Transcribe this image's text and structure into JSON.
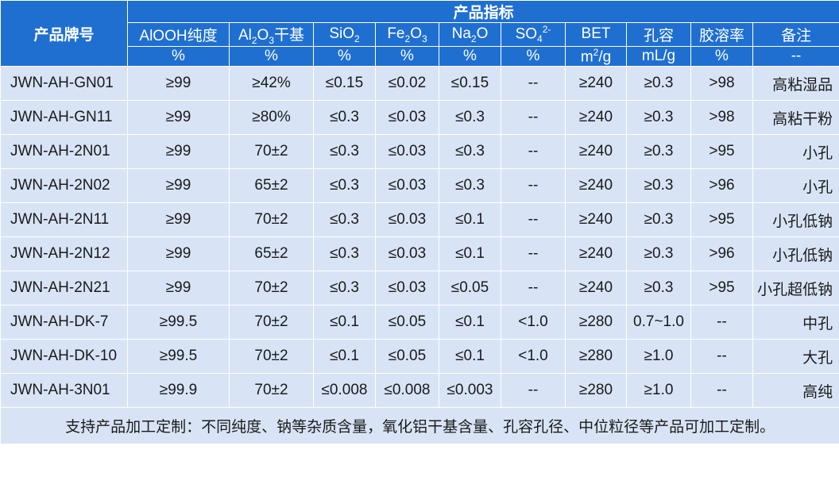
{
  "header": {
    "product_model": "产品牌号",
    "group_title": "产品指标",
    "columns": [
      {
        "key": "alooh",
        "label": "AlOOH纯度",
        "unit": "%"
      },
      {
        "key": "al2o3",
        "label_parts": [
          "Al",
          "2",
          "O",
          "3",
          "干基"
        ],
        "unit": "%"
      },
      {
        "key": "sio2",
        "label_parts": [
          "SiO",
          "2"
        ],
        "unit": "%"
      },
      {
        "key": "fe2o3",
        "label_parts": [
          "Fe",
          "2",
          "O",
          "3"
        ],
        "unit": "%"
      },
      {
        "key": "na2o",
        "label_parts": [
          "Na",
          "2",
          "O"
        ],
        "unit": "%"
      },
      {
        "key": "so4",
        "label_parts": [
          "SO",
          "4",
          "2-"
        ],
        "unit": "%"
      },
      {
        "key": "bet",
        "label": "BET",
        "unit_parts": [
          "m",
          "2",
          "/g"
        ]
      },
      {
        "key": "pore",
        "label": "孔容",
        "unit": "mL/g"
      },
      {
        "key": "peptization",
        "label": "胶溶率",
        "unit": "%"
      },
      {
        "key": "remark",
        "label": "备注",
        "unit": "--"
      }
    ]
  },
  "rows": [
    {
      "model": "JWN-AH-GN01",
      "values": [
        "≥99",
        "≥42%",
        "≤0.15",
        "≤0.02",
        "≤0.15",
        "--",
        "≥240",
        "≥0.3",
        ">98",
        "高粘湿品"
      ]
    },
    {
      "model": "JWN-AH-GN11",
      "values": [
        "≥99",
        "≥80%",
        "≤0.3",
        "≤0.03",
        "≤0.3",
        "--",
        "≥240",
        "≥0.3",
        ">98",
        "高粘干粉"
      ]
    },
    {
      "model": "JWN-AH-2N01",
      "values": [
        "≥99",
        "70±2",
        "≤0.3",
        "≤0.03",
        "≤0.3",
        "--",
        "≥240",
        "≥0.3",
        ">95",
        "小孔"
      ]
    },
    {
      "model": "JWN-AH-2N02",
      "values": [
        "≥99",
        "65±2",
        "≤0.3",
        "≤0.03",
        "≤0.3",
        "--",
        "≥240",
        "≥0.3",
        ">96",
        "小孔"
      ]
    },
    {
      "model": "JWN-AH-2N11",
      "values": [
        "≥99",
        "70±2",
        "≤0.3",
        "≤0.03",
        "≤0.1",
        "--",
        "≥240",
        "≥0.3",
        ">95",
        "小孔低钠"
      ]
    },
    {
      "model": "JWN-AH-2N12",
      "values": [
        "≥99",
        "65±2",
        "≤0.3",
        "≤0.03",
        "≤0.1",
        "--",
        "≥240",
        "≥0.3",
        ">96",
        "小孔低钠"
      ]
    },
    {
      "model": "JWN-AH-2N21",
      "values": [
        "≥99",
        "70±2",
        "≤0.3",
        "≤0.03",
        "≤0.05",
        "--",
        "≥240",
        "≥0.3",
        ">95",
        "小孔超低钠"
      ]
    },
    {
      "model": "JWN-AH-DK-7",
      "values": [
        "≥99.5",
        "70±2",
        "≤0.1",
        "≤0.05",
        "≤0.1",
        "<1.0",
        "≥280",
        "0.7~1.0",
        "--",
        "中孔"
      ]
    },
    {
      "model": "JWN-AH-DK-10",
      "values": [
        "≥99.5",
        "70±2",
        "≤0.1",
        "≤0.05",
        "≤0.1",
        "<1.0",
        "≥280",
        "≥1.0",
        "--",
        "大孔"
      ]
    },
    {
      "model": "JWN-AH-3N01",
      "values": [
        "≥99.9",
        "70±2",
        "≤0.008",
        "≤0.008",
        "≤0.003",
        "--",
        "≥280",
        "≥1.0",
        "--",
        "高纯"
      ]
    }
  ],
  "footer": "支持产品加工定制：不同纯度、钠等杂质含量，氧化铝干基含量、孔容孔径、中位粒径等产品可加工定制。",
  "colors": {
    "header_bg": "#1f6fd1",
    "row_bg": "#d8e4f6",
    "grid": "#ffffff"
  }
}
